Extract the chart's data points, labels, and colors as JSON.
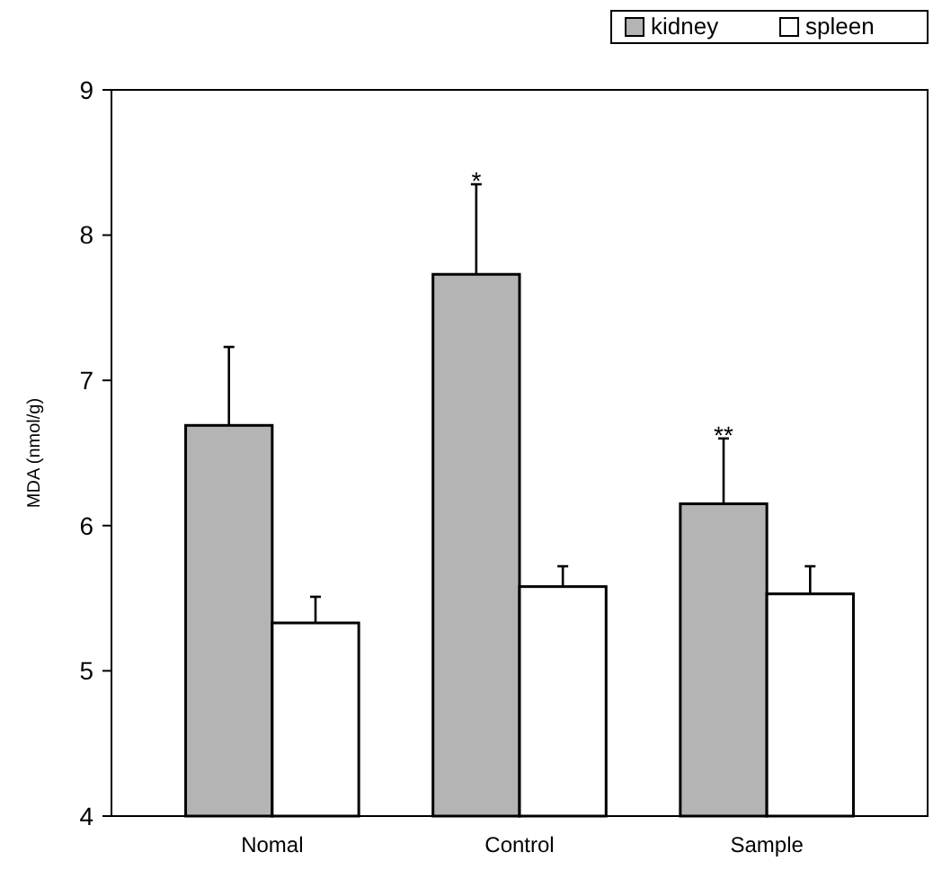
{
  "chart_data": {
    "type": "bar",
    "ylabel": "MDA (nmol/g)",
    "categories": [
      "Nomal",
      "Control",
      "Sample"
    ],
    "series": [
      {
        "name": "kidney",
        "color": "#b4b4b4",
        "values": [
          6.69,
          7.73,
          6.15
        ],
        "errors": [
          [
            6.69,
            7.23
          ],
          [
            7.73,
            8.35
          ],
          [
            6.15,
            6.6
          ]
        ],
        "value_labels": [
          null,
          "*",
          "**"
        ]
      },
      {
        "name": "spleen",
        "color": "#ffffff",
        "values": [
          5.33,
          5.58,
          5.53
        ],
        "errors": [
          [
            5.33,
            5.51
          ],
          [
            5.58,
            5.72
          ],
          [
            5.53,
            5.72
          ]
        ]
      }
    ],
    "ylim": [
      4,
      9
    ],
    "yticks": [
      4,
      5,
      6,
      7,
      8,
      9
    ],
    "grid": false,
    "legend": "top right"
  }
}
